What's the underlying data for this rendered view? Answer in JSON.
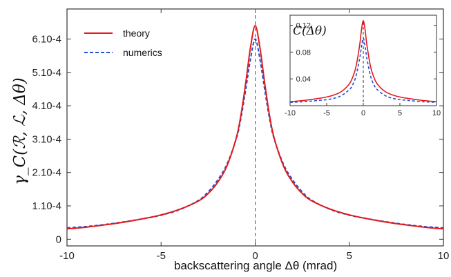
{
  "chart_data": {
    "type": "line",
    "xlabel": "backscattering angle Δθ (mrad)",
    "ylabel": "γ_C(ℛ, ℒ, Δθ)",
    "xlim": [
      -10,
      10
    ],
    "ylim": [
      -2e-05,
      0.00069
    ],
    "x_ticks": [
      {
        "v": -10,
        "label": "-10"
      },
      {
        "v": -5,
        "label": "-5"
      },
      {
        "v": 0,
        "label": "0"
      },
      {
        "v": 5,
        "label": "5"
      },
      {
        "v": 10,
        "label": "10"
      }
    ],
    "y_ticks": [
      {
        "v": 0,
        "label": "0"
      },
      {
        "v": 0.0001,
        "label": "1.10-4"
      },
      {
        "v": 0.0002,
        "label": "2.10-4"
      },
      {
        "v": 0.0003,
        "label": "3.10-4"
      },
      {
        "v": 0.0004,
        "label": "4.10-4"
      },
      {
        "v": 0.0005,
        "label": "5.10-4"
      },
      {
        "v": 0.0006,
        "label": "6.10-4"
      }
    ],
    "legend_position": "top-left",
    "vertical_reference_line_x": 0,
    "x": [
      -10,
      -9,
      -8,
      -7,
      -6,
      -5,
      -4,
      -3,
      -2.5,
      -2,
      -1.5,
      -1,
      -0.75,
      -0.5,
      -0.25,
      0,
      0.25,
      0.5,
      0.75,
      1,
      1.5,
      2,
      2.5,
      3,
      4,
      5,
      6,
      7,
      8,
      9,
      10
    ],
    "series": [
      {
        "name": "theory",
        "color": "#e41a1c",
        "style": "solid",
        "values": [
          3.1e-05,
          3.6e-05,
          4.3e-05,
          5.1e-05,
          6.1e-05,
          7.3e-05,
          9e-05,
          0.000115,
          0.000137,
          0.00017,
          0.00022,
          0.000305,
          0.000375,
          0.00047,
          0.000575,
          0.00064,
          0.000575,
          0.00047,
          0.000375,
          0.000305,
          0.00022,
          0.00017,
          0.000137,
          0.000115,
          9e-05,
          7.3e-05,
          6.1e-05,
          5.1e-05,
          4.3e-05,
          3.6e-05,
          3.1e-05
        ]
      },
      {
        "name": "numerics",
        "color": "#1f4fd8",
        "style": "dashed",
        "values": [
          3.4e-05,
          3.8e-05,
          4.4e-05,
          5.2e-05,
          6.1e-05,
          7.2e-05,
          8.9e-05,
          0.000117,
          0.000142,
          0.000177,
          0.000225,
          0.000302,
          0.000365,
          0.00045,
          0.00054,
          0.0006,
          0.00054,
          0.00045,
          0.000365,
          0.000302,
          0.000225,
          0.000177,
          0.000142,
          0.000117,
          8.9e-05,
          7.2e-05,
          6.1e-05,
          5.2e-05,
          4.4e-05,
          3.8e-05,
          3.4e-05
        ]
      }
    ],
    "inset": {
      "label": "C(Δθ)",
      "xlim": [
        -10,
        10
      ],
      "ylim": [
        0,
        0.135
      ],
      "x_ticks": [
        {
          "v": -10,
          "label": "-10"
        },
        {
          "v": -5,
          "label": "-5"
        },
        {
          "v": 0,
          "label": "0"
        },
        {
          "v": 5,
          "label": "5"
        },
        {
          "v": 10,
          "label": "10"
        }
      ],
      "y_ticks": [
        {
          "v": 0.04,
          "label": "0.04"
        },
        {
          "v": 0.08,
          "label": "0.08"
        },
        {
          "v": 0.12,
          "label": "0.12"
        }
      ],
      "x": [
        -10,
        -8,
        -6,
        -5,
        -4,
        -3,
        -2,
        -1.5,
        -1,
        -0.5,
        -0.25,
        0,
        0.25,
        0.5,
        1,
        1.5,
        2,
        3,
        4,
        5,
        6,
        8,
        10
      ],
      "series": [
        {
          "name": "theory",
          "color": "#e41a1c",
          "style": "solid",
          "values": [
            0.006,
            0.008,
            0.011,
            0.013,
            0.016,
            0.021,
            0.031,
            0.041,
            0.058,
            0.09,
            0.113,
            0.127,
            0.113,
            0.09,
            0.058,
            0.041,
            0.031,
            0.021,
            0.016,
            0.013,
            0.011,
            0.008,
            0.006
          ]
        },
        {
          "name": "numerics",
          "color": "#1f4fd8",
          "style": "dashed",
          "values": [
            0.005,
            0.006,
            0.008,
            0.009,
            0.011,
            0.015,
            0.023,
            0.03,
            0.044,
            0.07,
            0.088,
            0.101,
            0.088,
            0.07,
            0.044,
            0.03,
            0.023,
            0.015,
            0.011,
            0.009,
            0.008,
            0.006,
            0.005
          ]
        }
      ]
    }
  },
  "legend": {
    "theory_label": "theory",
    "numerics_label": "numerics"
  },
  "labels": {
    "xlabel": "backscattering angle Δθ (mrad)",
    "ylabel": "γ_C(ℛ, ℒ, Δθ)",
    "inset_label": "C(Δθ)"
  }
}
